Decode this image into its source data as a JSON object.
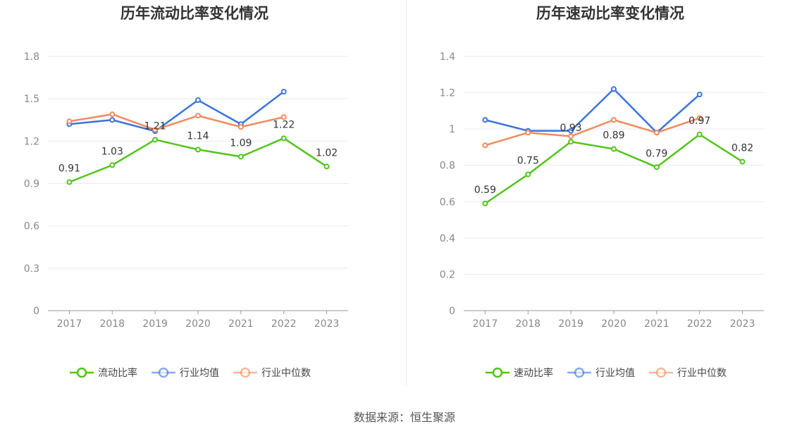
{
  "source": "数据来源：恒生聚源",
  "chart_data": [
    {
      "type": "line",
      "title": "历年流动比率变化情况",
      "categories": [
        "2017",
        "2018",
        "2019",
        "2020",
        "2021",
        "2022",
        "2023"
      ],
      "ylim": [
        0,
        1.8
      ],
      "yticks": [
        0,
        0.3,
        0.6,
        0.9,
        1.2,
        1.5,
        1.8
      ],
      "ytick_labels": [
        "0",
        "0.3",
        "0.6",
        "0.9",
        "1.2",
        "1.5",
        "1.8"
      ],
      "series": [
        {
          "name": "流动比率",
          "color": "#52c41a",
          "values": [
            0.91,
            1.03,
            1.21,
            1.14,
            1.09,
            1.22,
            1.02
          ],
          "labels": [
            "0.91",
            "1.03",
            "1.21",
            "1.14",
            "1.09",
            "1.22",
            "1.02"
          ]
        },
        {
          "name": "行业均值",
          "color": "#3b73db",
          "values": [
            1.32,
            1.35,
            1.27,
            1.49,
            1.32,
            1.55,
            null
          ]
        },
        {
          "name": "行业中位数",
          "color": "#f08a5d",
          "values": [
            1.34,
            1.39,
            1.28,
            1.38,
            1.3,
            1.37,
            null
          ]
        }
      ]
    },
    {
      "type": "line",
      "title": "历年速动比率变化情况",
      "categories": [
        "2017",
        "2018",
        "2019",
        "2020",
        "2021",
        "2022",
        "2023"
      ],
      "ylim": [
        0,
        1.4
      ],
      "yticks": [
        0,
        0.2,
        0.4,
        0.6,
        0.8,
        1,
        1.2,
        1.4
      ],
      "ytick_labels": [
        "0",
        "0.2",
        "0.4",
        "0.6",
        "0.8",
        "1",
        "1.2",
        "1.4"
      ],
      "series": [
        {
          "name": "速动比率",
          "color": "#52c41a",
          "values": [
            0.59,
            0.75,
            0.93,
            0.89,
            0.79,
            0.97,
            0.82
          ],
          "labels": [
            "0.59",
            "0.75",
            "0.93",
            "0.89",
            "0.79",
            "0.97",
            "0.82"
          ]
        },
        {
          "name": "行业均值",
          "color": "#3b73db",
          "values": [
            1.05,
            0.99,
            0.99,
            1.22,
            0.98,
            1.19,
            null
          ]
        },
        {
          "name": "行业中位数",
          "color": "#f08a5d",
          "values": [
            0.91,
            0.98,
            0.96,
            1.05,
            0.98,
            1.06,
            null
          ]
        }
      ]
    }
  ]
}
